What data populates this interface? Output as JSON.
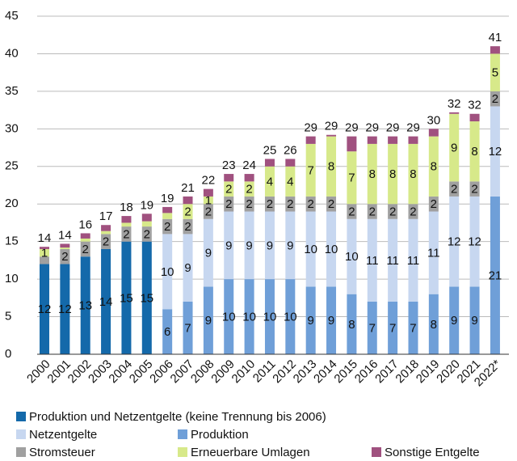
{
  "chart_data": {
    "type": "stacked_bar",
    "categories": [
      "2000",
      "2001",
      "2002",
      "2003",
      "2004",
      "2005",
      "2006",
      "2007",
      "2008",
      "2009",
      "2010",
      "2011",
      "2012",
      "2013",
      "2014",
      "2015",
      "2016",
      "2017",
      "2018",
      "2019",
      "2020",
      "2021",
      "2022*"
    ],
    "ylim": [
      0,
      45
    ],
    "yticks": [
      0,
      5,
      10,
      15,
      20,
      25,
      30,
      35,
      40,
      45
    ],
    "grid": true,
    "series": [
      {
        "name": "Produktion und Netzentgelte (keine Trennung bis 2006)",
        "color": "#1469aa",
        "values": [
          12,
          12,
          13,
          14,
          15,
          15,
          null,
          null,
          null,
          null,
          null,
          null,
          null,
          null,
          null,
          null,
          null,
          null,
          null,
          null,
          null,
          null,
          null
        ]
      },
      {
        "name": "Produktion",
        "color": "#6f9fd8",
        "values": [
          null,
          null,
          null,
          null,
          null,
          null,
          6,
          7,
          9,
          10,
          10,
          10,
          10,
          9,
          9,
          8,
          7,
          7,
          7,
          8,
          9,
          9,
          21
        ]
      },
      {
        "name": "Netzentgelte",
        "color": "#c7d7f0",
        "values": [
          null,
          null,
          null,
          null,
          null,
          null,
          10,
          9,
          9,
          9,
          9,
          9,
          9,
          10,
          10,
          10,
          11,
          11,
          11,
          11,
          12,
          12,
          12
        ]
      },
      {
        "name": "Stromsteuer",
        "color": "#a0a0a0",
        "values": [
          1,
          2,
          2,
          2,
          2,
          2,
          2,
          2,
          2,
          2,
          2,
          2,
          2,
          2,
          2,
          2,
          2,
          2,
          2,
          2,
          2,
          2,
          2
        ],
        "value_labels": [
          null,
          "2",
          "2",
          "2",
          "2",
          "2",
          "2",
          "2",
          "2",
          "2",
          "2",
          "2",
          "2",
          "2",
          "2",
          "2",
          "2",
          "2",
          "2",
          "2",
          "2",
          "2",
          "2"
        ]
      },
      {
        "name": "Erneuerbare Umlagen",
        "color": "#d7e98a",
        "values": [
          1,
          0.2,
          0.4,
          0.4,
          0.5,
          0.7,
          0.8,
          2,
          1,
          2,
          2,
          4,
          4,
          7,
          8,
          7,
          8,
          8,
          8,
          8,
          9,
          8,
          5
        ],
        "value_labels": [
          "1",
          null,
          null,
          null,
          null,
          null,
          null,
          "2",
          "1",
          "2",
          "2",
          "4",
          "4",
          "7",
          "8",
          "7",
          "8",
          "8",
          "8",
          "8",
          "9",
          "8",
          "5"
        ]
      },
      {
        "name": "Sonstige Entgelte",
        "color": "#a0517f",
        "values": [
          0.3,
          0.5,
          0.7,
          0.8,
          0.9,
          1,
          0.8,
          1,
          1,
          1,
          1,
          1,
          1,
          1,
          0.2,
          2,
          1,
          1,
          1,
          1,
          0.2,
          1,
          1
        ],
        "value_labels": [
          null,
          null,
          null,
          null,
          null,
          null,
          null,
          null,
          null,
          null,
          null,
          null,
          null,
          null,
          null,
          null,
          null,
          null,
          null,
          null,
          null,
          null,
          null
        ]
      }
    ],
    "totals": [
      14,
      14,
      16,
      17,
      18,
      19,
      19,
      21,
      22,
      23,
      24,
      25,
      26,
      29,
      29,
      29,
      29,
      29,
      29,
      30,
      32,
      32,
      41
    ]
  }
}
